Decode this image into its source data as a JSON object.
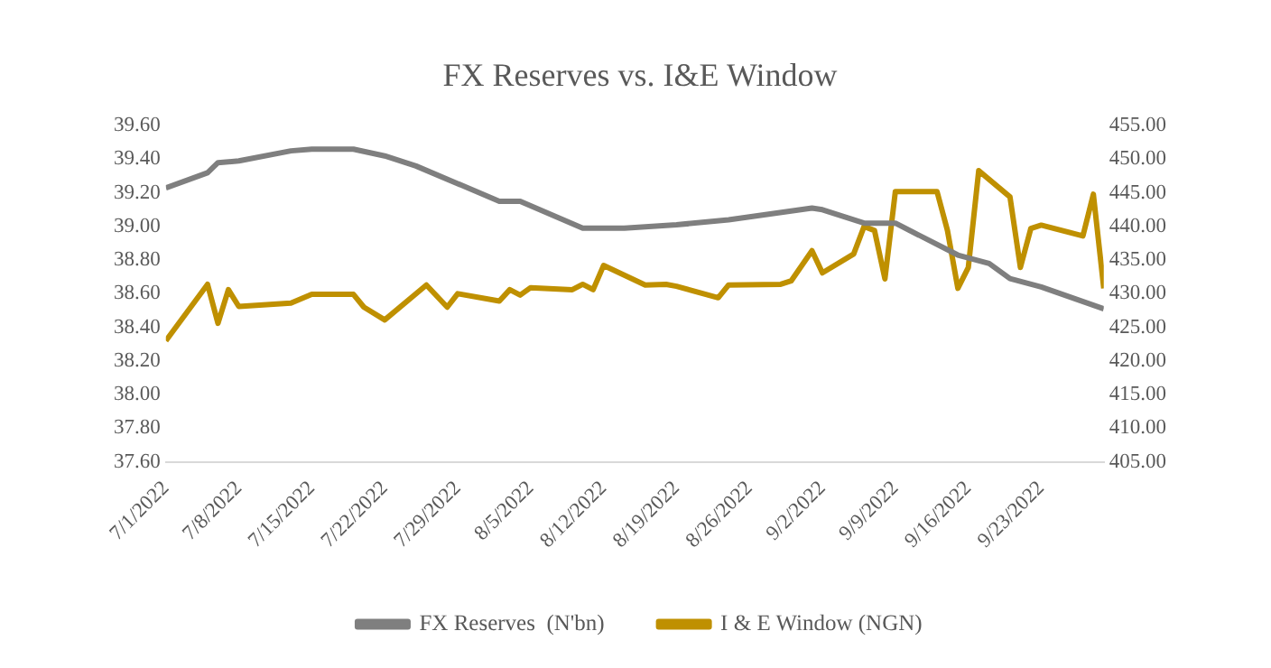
{
  "chart_data": {
    "type": "line",
    "title": "FX Reserves vs. I&E Window",
    "xlim": [
      "2022-07-01",
      "2022-09-29"
    ],
    "xticks": [
      {
        "value": "2022-07-01",
        "label": "7/1/2022"
      },
      {
        "value": "2022-07-08",
        "label": "7/8/2022"
      },
      {
        "value": "2022-07-15",
        "label": "7/15/2022"
      },
      {
        "value": "2022-07-22",
        "label": "7/22/2022"
      },
      {
        "value": "2022-07-29",
        "label": "7/29/2022"
      },
      {
        "value": "2022-08-05",
        "label": "8/5/2022"
      },
      {
        "value": "2022-08-12",
        "label": "8/12/2022"
      },
      {
        "value": "2022-08-19",
        "label": "8/19/2022"
      },
      {
        "value": "2022-08-26",
        "label": "8/26/2022"
      },
      {
        "value": "2022-09-02",
        "label": "9/2/2022"
      },
      {
        "value": "2022-09-09",
        "label": "9/9/2022"
      },
      {
        "value": "2022-09-16",
        "label": "9/16/2022"
      },
      {
        "value": "2022-09-23",
        "label": "9/23/2022"
      }
    ],
    "ylim": [
      37.6,
      39.6
    ],
    "yticks": [
      {
        "value": 37.6,
        "label": "37.60"
      },
      {
        "value": 37.8,
        "label": "37.80"
      },
      {
        "value": 38.0,
        "label": "38.00"
      },
      {
        "value": 38.2,
        "label": "38.20"
      },
      {
        "value": 38.4,
        "label": "38.40"
      },
      {
        "value": 38.6,
        "label": "38.60"
      },
      {
        "value": 38.8,
        "label": "38.80"
      },
      {
        "value": 39.0,
        "label": "39.00"
      },
      {
        "value": 39.2,
        "label": "39.20"
      },
      {
        "value": 39.4,
        "label": "39.40"
      },
      {
        "value": 39.6,
        "label": "39.60"
      }
    ],
    "y2lim": [
      405,
      455
    ],
    "y2ticks": [
      {
        "value": 405,
        "label": "405.00"
      },
      {
        "value": 410,
        "label": "410.00"
      },
      {
        "value": 415,
        "label": "415.00"
      },
      {
        "value": 420,
        "label": "420.00"
      },
      {
        "value": 425,
        "label": "425.00"
      },
      {
        "value": 430,
        "label": "430.00"
      },
      {
        "value": 435,
        "label": "435.00"
      },
      {
        "value": 440,
        "label": "440.00"
      },
      {
        "value": 445,
        "label": "445.00"
      },
      {
        "value": 450,
        "label": "450.00"
      },
      {
        "value": 455,
        "label": "455.00"
      }
    ],
    "grid": false,
    "legend": "bottom",
    "marker": "none",
    "line_style": "solid",
    "series": [
      {
        "name": "FX Reserves  (N'bn)",
        "color": "#7f7f7f",
        "axis": "y",
        "x": [
          "2022-07-01",
          "2022-07-05",
          "2022-07-06",
          "2022-07-08",
          "2022-07-13",
          "2022-07-15",
          "2022-07-19",
          "2022-07-22",
          "2022-07-25",
          "2022-08-02",
          "2022-08-04",
          "2022-08-10",
          "2022-08-14",
          "2022-08-19",
          "2022-08-24",
          "2022-09-01",
          "2022-09-02",
          "2022-09-06",
          "2022-09-09",
          "2022-09-15",
          "2022-09-18",
          "2022-09-20",
          "2022-09-23",
          "2022-09-29"
        ],
        "values": [
          39.23,
          39.32,
          39.38,
          39.39,
          39.45,
          39.46,
          39.46,
          39.42,
          39.36,
          39.15,
          39.15,
          38.99,
          38.99,
          39.01,
          39.04,
          39.11,
          39.1,
          39.02,
          39.02,
          38.83,
          38.78,
          38.69,
          38.64,
          38.51
        ]
      },
      {
        "name": "I & E Window (NGN)",
        "color": "#bf9000",
        "axis": "y2",
        "x": [
          "2022-07-01",
          "2022-07-05",
          "2022-07-06",
          "2022-07-07",
          "2022-07-08",
          "2022-07-13",
          "2022-07-15",
          "2022-07-19",
          "2022-07-20",
          "2022-07-22",
          "2022-07-26",
          "2022-07-28",
          "2022-07-29",
          "2022-08-02",
          "2022-08-03",
          "2022-08-04",
          "2022-08-05",
          "2022-08-09",
          "2022-08-10",
          "2022-08-11",
          "2022-08-12",
          "2022-08-16",
          "2022-08-18",
          "2022-08-19",
          "2022-08-23",
          "2022-08-24",
          "2022-08-29",
          "2022-08-30",
          "2022-09-01",
          "2022-09-02",
          "2022-09-05",
          "2022-09-06",
          "2022-09-07",
          "2022-09-08",
          "2022-09-09",
          "2022-09-13",
          "2022-09-14",
          "2022-09-15",
          "2022-09-16",
          "2022-09-17",
          "2022-09-20",
          "2022-09-21",
          "2022-09-22",
          "2022-09-23",
          "2022-09-27",
          "2022-09-28",
          "2022-09-29"
        ],
        "values": [
          423.0,
          431.4,
          425.6,
          430.6,
          428.1,
          428.6,
          429.9,
          429.9,
          428.0,
          426.1,
          431.3,
          428.0,
          430.0,
          428.9,
          430.6,
          429.8,
          430.9,
          430.6,
          431.4,
          430.6,
          434.2,
          431.3,
          431.4,
          431.1,
          429.4,
          431.3,
          431.4,
          431.9,
          436.4,
          433.1,
          435.9,
          440.0,
          439.4,
          432.2,
          445.2,
          445.2,
          439.4,
          430.8,
          433.9,
          448.3,
          444.4,
          433.9,
          439.7,
          440.2,
          438.6,
          444.8,
          430.8
        ]
      }
    ]
  }
}
